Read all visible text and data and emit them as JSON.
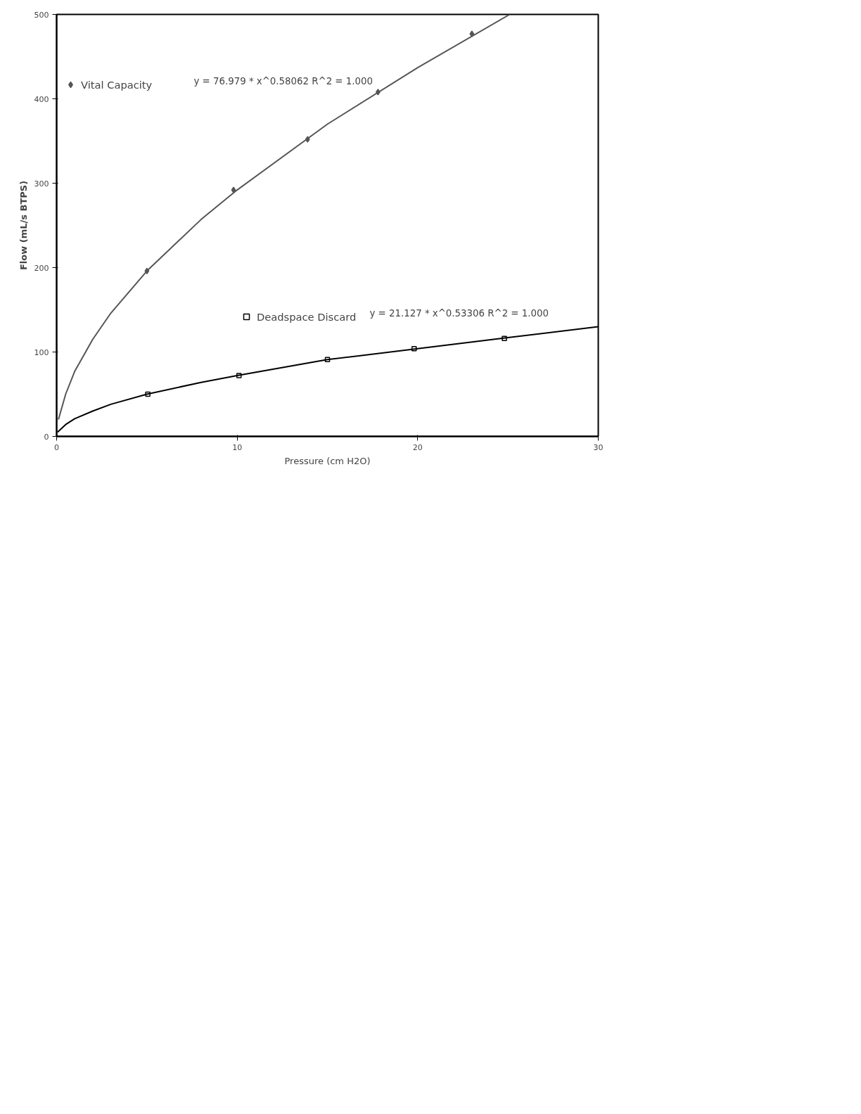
{
  "chart_data": {
    "type": "scatter",
    "xlabel": "Pressure (cm H2O)",
    "ylabel": "Flow (mL/s BTPS)",
    "xlim": [
      0,
      30
    ],
    "ylim": [
      0,
      500
    ],
    "xticks": [
      0,
      10,
      20,
      30
    ],
    "yticks": [
      0,
      100,
      200,
      300,
      400,
      500
    ],
    "grid": false,
    "legend": "top left",
    "series": [
      {
        "name": "Vital Capacity",
        "marker": "diamond",
        "color": "#555555",
        "x": [
          5,
          9.8,
          13.9,
          17.8,
          23
        ],
        "values": [
          196,
          292,
          352,
          408,
          477
        ]
      },
      {
        "name": "Deadspace Discard",
        "marker": "square",
        "color": "#000000",
        "x": [
          5.05,
          10.1,
          15,
          19.8,
          24.8
        ],
        "values": [
          50,
          72,
          91,
          104,
          116
        ]
      },
      {
        "type": "line",
        "color": "#555555",
        "x": [
          0.1,
          0.5,
          1,
          2,
          3,
          5,
          8,
          10,
          15,
          20,
          25.1
        ],
        "values": [
          20,
          50,
          77,
          115,
          146,
          196,
          257,
          292,
          370,
          437,
          500
        ]
      },
      {
        "type": "line",
        "color": "#000000",
        "x": [
          0.05,
          0.5,
          1,
          2,
          3,
          5,
          8,
          10,
          15,
          20,
          25,
          30
        ],
        "values": [
          5,
          14,
          21,
          30,
          38,
          50,
          64,
          72,
          91,
          104,
          117,
          130
        ]
      }
    ],
    "annotations": [
      "y = 76.979 * x^0.58062   R^2 = 1.000",
      "y = 21.127 * x^0.53306   R^2 = 1.000"
    ]
  }
}
